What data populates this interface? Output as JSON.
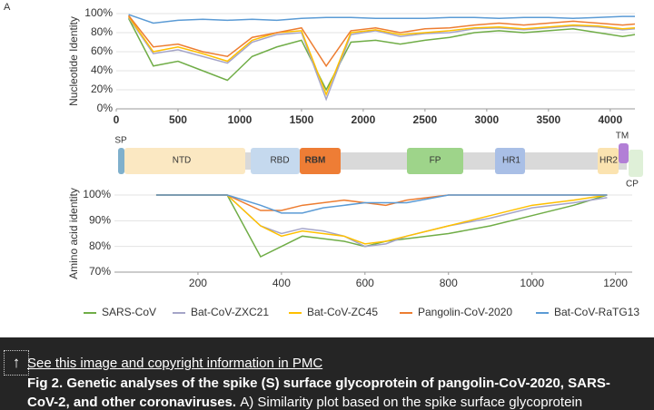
{
  "panel_label": "A",
  "chart_data": [
    {
      "type": "line",
      "y_label": "Nucleotide Identity",
      "xlim": [
        0,
        4200
      ],
      "xticks": [
        0,
        500,
        1000,
        1500,
        2000,
        2500,
        3000,
        3500,
        4000
      ],
      "ylim": [
        0,
        100
      ],
      "yticks": [
        {
          "value": 0,
          "label": "0%"
        },
        {
          "value": 20,
          "label": "20%"
        },
        {
          "value": 40,
          "label": "40%"
        },
        {
          "value": 60,
          "label": "60%"
        },
        {
          "value": 80,
          "label": "80%"
        },
        {
          "value": 100,
          "label": "100%"
        }
      ],
      "x": [
        100,
        300,
        500,
        700,
        900,
        1100,
        1300,
        1500,
        1700,
        1900,
        2100,
        2300,
        2500,
        2700,
        2900,
        3100,
        3300,
        3500,
        3700,
        3900,
        4100,
        4200
      ],
      "series": [
        {
          "color": "#70ad47",
          "values": [
            95,
            45,
            50,
            40,
            30,
            55,
            65,
            72,
            20,
            70,
            72,
            68,
            72,
            75,
            80,
            82,
            80,
            82,
            84,
            80,
            76,
            78
          ]
        },
        {
          "color": "#a5a5c8",
          "values": [
            96,
            58,
            62,
            55,
            48,
            70,
            78,
            80,
            10,
            78,
            82,
            76,
            79,
            80,
            84,
            85,
            83,
            85,
            87,
            86,
            83,
            84
          ]
        },
        {
          "color": "#ffc000",
          "values": [
            97,
            60,
            65,
            58,
            50,
            72,
            80,
            82,
            15,
            80,
            83,
            78,
            80,
            82,
            85,
            86,
            84,
            86,
            88,
            87,
            84,
            85
          ]
        },
        {
          "color": "#ed7d31",
          "values": [
            98,
            65,
            68,
            60,
            55,
            75,
            80,
            85,
            45,
            82,
            85,
            80,
            84,
            85,
            88,
            90,
            88,
            90,
            92,
            90,
            88,
            89
          ]
        },
        {
          "color": "#5b9bd5",
          "values": [
            99,
            90,
            93,
            94,
            93,
            94,
            93,
            95,
            96,
            96,
            95,
            95,
            95,
            96,
            96,
            95,
            96,
            96,
            95,
            96,
            97,
            97
          ]
        }
      ]
    },
    {
      "type": "line",
      "y_label": "Amino acid identity",
      "xlim": [
        0,
        1240
      ],
      "xticks": [
        200,
        400,
        600,
        800,
        1000,
        1200
      ],
      "ylim": [
        70,
        100
      ],
      "yticks": [
        {
          "value": 70,
          "label": "70%"
        },
        {
          "value": 80,
          "label": "80%"
        },
        {
          "value": 90,
          "label": "90%"
        },
        {
          "value": 100,
          "label": "100%"
        }
      ],
      "x": [
        100,
        270,
        350,
        400,
        450,
        500,
        550,
        600,
        650,
        700,
        800,
        900,
        1000,
        1100,
        1180
      ],
      "series": [
        {
          "name": "SARS-CoV",
          "color": "#70ad47",
          "values": [
            100,
            100,
            76,
            80,
            84,
            83,
            82,
            80,
            82,
            83,
            85,
            88,
            92,
            96,
            100
          ]
        },
        {
          "name": "Bat-CoV-ZXC21",
          "color": "#a5a5c8",
          "values": [
            100,
            100,
            88,
            85,
            87,
            86,
            84,
            80,
            81,
            84,
            88,
            91,
            95,
            97,
            99
          ]
        },
        {
          "name": "Bat-CoV-ZC45",
          "color": "#ffc000",
          "values": [
            100,
            100,
            88,
            84,
            86,
            85,
            84,
            81,
            82,
            84,
            88,
            92,
            96,
            98,
            100
          ]
        },
        {
          "name": "Pangolin-CoV-2020",
          "color": "#ed7d31",
          "values": [
            100,
            100,
            94,
            94,
            96,
            97,
            98,
            97,
            96,
            98,
            100,
            100,
            100,
            100,
            100
          ]
        },
        {
          "name": "Bat-CoV-RaTG13",
          "color": "#5b9bd5",
          "values": [
            100,
            100,
            96,
            93,
            93,
            95,
            96,
            97,
            97,
            97,
            100,
            100,
            100,
            100,
            100
          ]
        }
      ]
    }
  ],
  "domains": [
    "SP",
    "NTD",
    "RBD",
    "RBM",
    "FP",
    "HR1",
    "HR2",
    "TM",
    "CP"
  ],
  "caption": {
    "link": "See this image and copyright information in PMC",
    "title": "Fig 2. Genetic analyses of the spike (S) surface glycoprotein of pangolin-CoV-2020, SARS-CoV-2, and other coronaviruses.",
    "text": "A) Similarity plot based on the spike surface glycoprotein"
  }
}
